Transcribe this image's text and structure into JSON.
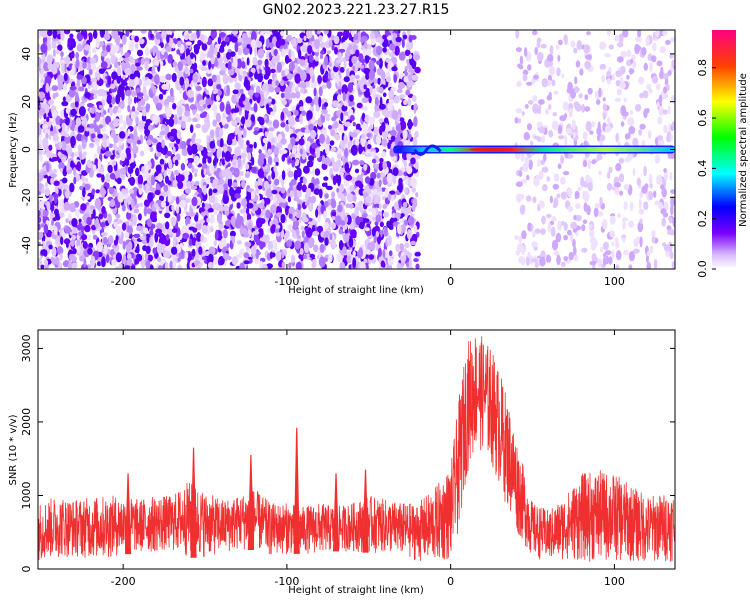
{
  "chart_data": [
    {
      "type": "heatmap",
      "title": "GN02.2023.221.23.27.R15",
      "xlabel": "Height of straight line (km)",
      "ylabel": "Frequency (Hz)",
      "xlim": [
        -252,
        137
      ],
      "ylim": [
        -50,
        50
      ],
      "xticks": [
        -200,
        -100,
        0,
        100
      ],
      "yticks": [
        -40,
        -20,
        0,
        20,
        40
      ],
      "grid": false,
      "colorbar": {
        "label": "Normalized spectral amplitude",
        "range": [
          0.0,
          0.95
        ],
        "ticks": [
          0.0,
          0.2,
          0.4,
          0.6,
          0.8
        ],
        "colors": [
          "#ffffff",
          "#6a00ff",
          "#0000ff",
          "#00ffff",
          "#00ff00",
          "#ffff00",
          "#ff0000",
          "#ff0080"
        ]
      },
      "regions": [
        {
          "x": [
            -252,
            -20
          ],
          "y": [
            -50,
            50
          ],
          "amplitude": "low (0.05–0.3)",
          "density": "high"
        },
        {
          "x": [
            -20,
            40
          ],
          "y": [
            -50,
            50
          ],
          "amplitude": "≈0",
          "density": "none"
        },
        {
          "x": [
            40,
            137
          ],
          "y": [
            -50,
            50
          ],
          "amplitude": "low (0.05–0.15)",
          "density": "sparse"
        }
      ],
      "ridge": {
        "frequency": 0,
        "x": [
          -35,
          -20,
          -10,
          0,
          10,
          20,
          30,
          40,
          60,
          80,
          100,
          120,
          137
        ],
        "amplitude": [
          0.2,
          0.35,
          0.55,
          0.6,
          0.75,
          0.9,
          0.9,
          0.6,
          0.5,
          0.55,
          0.5,
          0.45,
          0.4
        ]
      }
    },
    {
      "type": "line",
      "xlabel": "Height of straight line (km)",
      "ylabel": "SNR (10 * v/v)",
      "xlim": [
        -252,
        137
      ],
      "ylim": [
        0,
        3250
      ],
      "xticks": [
        -200,
        -100,
        0,
        100
      ],
      "yticks": [
        0,
        1000,
        2000,
        3000
      ],
      "grid": false,
      "color": "#f03030",
      "series": [
        {
          "x": [
            -252,
            -240,
            -230,
            -220,
            -210,
            -200,
            -190,
            -180,
            -170,
            -160,
            -150,
            -140,
            -130,
            -120,
            -110,
            -100,
            -90,
            -80,
            -70,
            -60,
            -50,
            -40,
            -30,
            -20,
            -10,
            0,
            5,
            10,
            15,
            20,
            25,
            30,
            35,
            40,
            50,
            60,
            70,
            80,
            90,
            100,
            110,
            120,
            137
          ],
          "low": [
            120,
            150,
            160,
            140,
            130,
            200,
            210,
            220,
            240,
            150,
            160,
            200,
            250,
            260,
            170,
            200,
            210,
            200,
            240,
            230,
            220,
            210,
            180,
            100,
            80,
            100,
            500,
            1300,
            1600,
            1600,
            1400,
            1100,
            800,
            500,
            150,
            100,
            120,
            100,
            80,
            100,
            90,
            80,
            100
          ],
          "high": [
            900,
            1000,
            950,
            980,
            1000,
            1000,
            950,
            1000,
            1000,
            1200,
            1050,
            950,
            1000,
            1100,
            900,
            900,
            850,
            900,
            850,
            900,
            1000,
            950,
            900,
            900,
            1100,
            1400,
            2300,
            3100,
            3250,
            3150,
            3000,
            2700,
            2300,
            1800,
            900,
            800,
            1000,
            1300,
            1350,
            1300,
            1150,
            1000,
            1050
          ]
        }
      ],
      "spikes": [
        {
          "x": -197,
          "value": 1300
        },
        {
          "x": -157,
          "value": 1650
        },
        {
          "x": -122,
          "value": 1550
        },
        {
          "x": -94,
          "value": 1920
        },
        {
          "x": -70,
          "value": 1300
        },
        {
          "x": -52,
          "value": 1350
        }
      ]
    }
  ]
}
